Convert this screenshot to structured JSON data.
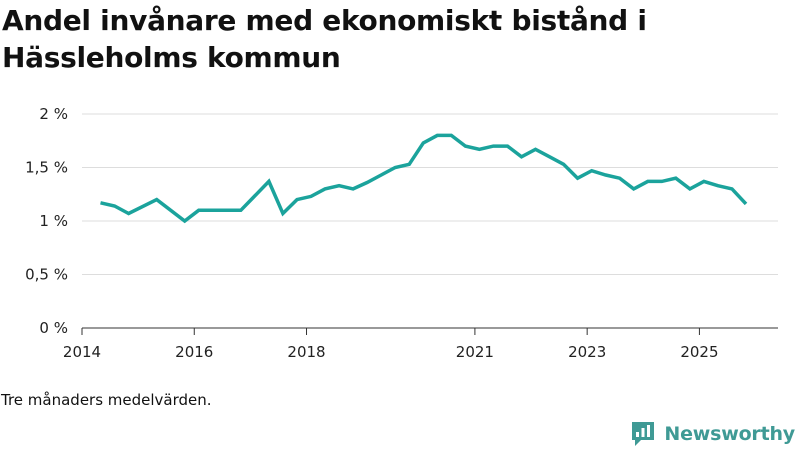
{
  "title": "Andel invånare med ekonomiskt bistånd i Hässleholms kommun",
  "note": "Tre månaders medelvärden.",
  "brand": "Newsworthy",
  "colors": {
    "line": "#1ba39c",
    "grid": "#dddddd",
    "axis": "#333333",
    "brand": "#3f9a95"
  },
  "chart_data": {
    "type": "line",
    "title": "Andel invånare med ekonomiskt bistånd i Hässleholms kommun",
    "xlabel": "",
    "ylabel": "",
    "ylim": [
      0,
      2
    ],
    "xlim": [
      2014,
      2026.4
    ],
    "grid": true,
    "y_ticks": [
      {
        "value": 0,
        "label": "0 %"
      },
      {
        "value": 0.5,
        "label": "0,5 %"
      },
      {
        "value": 1,
        "label": "1 %"
      },
      {
        "value": 1.5,
        "label": "1,5 %"
      },
      {
        "value": 2,
        "label": "2 %"
      }
    ],
    "x_ticks": [
      {
        "value": 2014,
        "label": "2014"
      },
      {
        "value": 2016,
        "label": "2016"
      },
      {
        "value": 2018,
        "label": "2018"
      },
      {
        "value": 2021,
        "label": "2021"
      },
      {
        "value": 2023,
        "label": "2023"
      },
      {
        "value": 2025,
        "label": "2025"
      }
    ],
    "series": [
      {
        "name": "Andel invånare med ekonomiskt bistånd",
        "x": [
          2014.33,
          2014.58,
          2014.83,
          2015.33,
          2015.83,
          2016.08,
          2016.33,
          2016.58,
          2016.83,
          2017.33,
          2017.58,
          2017.83,
          2018.08,
          2018.33,
          2018.58,
          2018.83,
          2019.08,
          2019.33,
          2019.58,
          2019.83,
          2020.08,
          2020.33,
          2020.58,
          2020.83,
          2021.08,
          2021.33,
          2021.58,
          2021.83,
          2022.08,
          2022.33,
          2022.58,
          2022.83,
          2023.08,
          2023.33,
          2023.58,
          2023.83,
          2024.08,
          2024.33,
          2024.58,
          2024.83,
          2025.08,
          2025.33,
          2025.58,
          2025.83
        ],
        "values": [
          1.17,
          1.14,
          1.07,
          1.2,
          1.0,
          1.1,
          1.1,
          1.1,
          1.1,
          1.37,
          1.07,
          1.2,
          1.23,
          1.3,
          1.33,
          1.3,
          1.36,
          1.43,
          1.5,
          1.53,
          1.73,
          1.8,
          1.8,
          1.7,
          1.67,
          1.7,
          1.7,
          1.6,
          1.67,
          1.6,
          1.53,
          1.4,
          1.47,
          1.43,
          1.4,
          1.3,
          1.37,
          1.37,
          1.4,
          1.3,
          1.37,
          1.33,
          1.3,
          1.16
        ]
      }
    ]
  }
}
